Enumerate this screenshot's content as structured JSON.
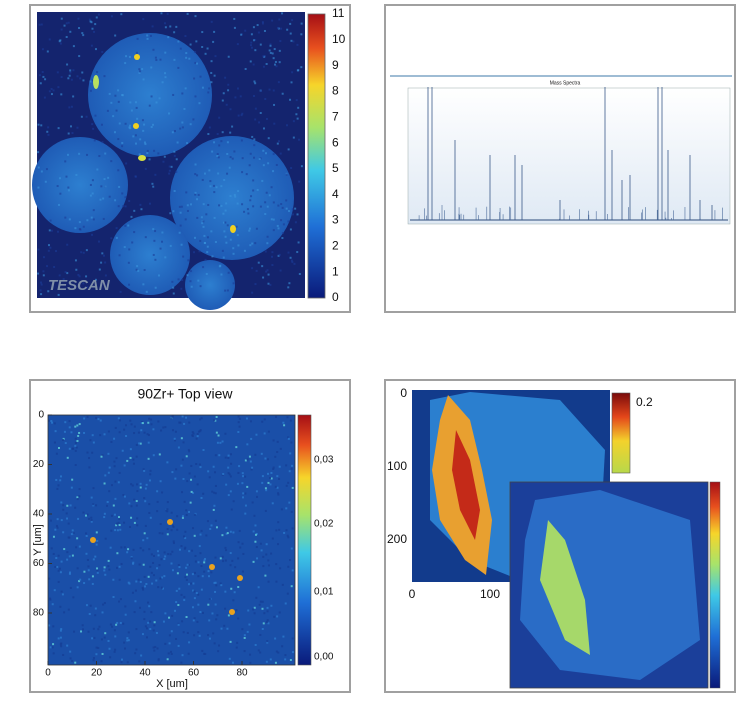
{
  "panels": [
    {
      "watermark": "TESCAN",
      "colorbar_ticks": [
        "0",
        "1",
        "2",
        "3",
        "4",
        "5",
        "6",
        "7",
        "8",
        "9",
        "10",
        "11"
      ]
    },
    {
      "title": "Mass Spectra"
    },
    {
      "title": "90Zr+ Top view",
      "y_label": "Y [um]",
      "x_label": "X [um]",
      "y_ticks": [
        "0",
        "20",
        "40",
        "60",
        "80"
      ],
      "x_ticks": [
        "0",
        "20",
        "40",
        "60",
        "80"
      ],
      "colorbar_ticks": [
        "0,03",
        "0,02",
        "0,01",
        "0,00"
      ]
    },
    {
      "y_ticks": [
        "0",
        "100",
        "200"
      ],
      "x_ticks": [
        "0",
        "100"
      ],
      "colorbar_ticks": [
        "0.2"
      ]
    }
  ]
}
